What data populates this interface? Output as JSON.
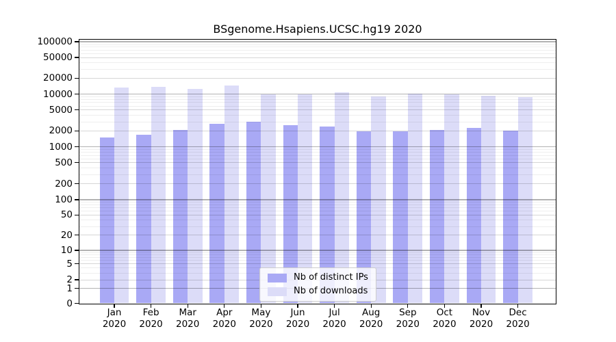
{
  "title": "BSgenome.Hsapiens.UCSC.hg19 2020",
  "legend": {
    "items": [
      {
        "label": "Nb of distinct IPs",
        "color": "#a9a9f5"
      },
      {
        "label": "Nb of downloads",
        "color": "#dcdcf8"
      }
    ]
  },
  "chart_data": {
    "type": "bar",
    "title": "BSgenome.Hsapiens.UCSC.hg19 2020",
    "categories": [
      "Jan 2020",
      "Feb 2020",
      "Mar 2020",
      "Apr 2020",
      "May 2020",
      "Jun 2020",
      "Jul 2020",
      "Aug 2020",
      "Sep 2020",
      "Oct 2020",
      "Nov 2020",
      "Dec 2020"
    ],
    "series": [
      {
        "name": "Nb of distinct IPs",
        "color": "#a9a9f5",
        "values": [
          1500,
          1700,
          2050,
          2700,
          3000,
          2550,
          2400,
          1950,
          1950,
          2100,
          2300,
          2000
        ]
      },
      {
        "name": "Nb of downloads",
        "color": "#dcdcf8",
        "values": [
          13400,
          13700,
          12500,
          14700,
          9750,
          9900,
          10900,
          9100,
          10250,
          9850,
          9300,
          8700
        ]
      }
    ],
    "yscale": "symlog",
    "y_ticks": [
      0,
      1,
      2,
      5,
      10,
      20,
      50,
      100,
      200,
      500,
      1000,
      2000,
      5000,
      10000,
      20000,
      50000,
      100000
    ],
    "ylim": [
      0,
      125000
    ],
    "xlabel": "",
    "ylabel": "",
    "grid": "on",
    "legend_position": "bottom-center"
  }
}
